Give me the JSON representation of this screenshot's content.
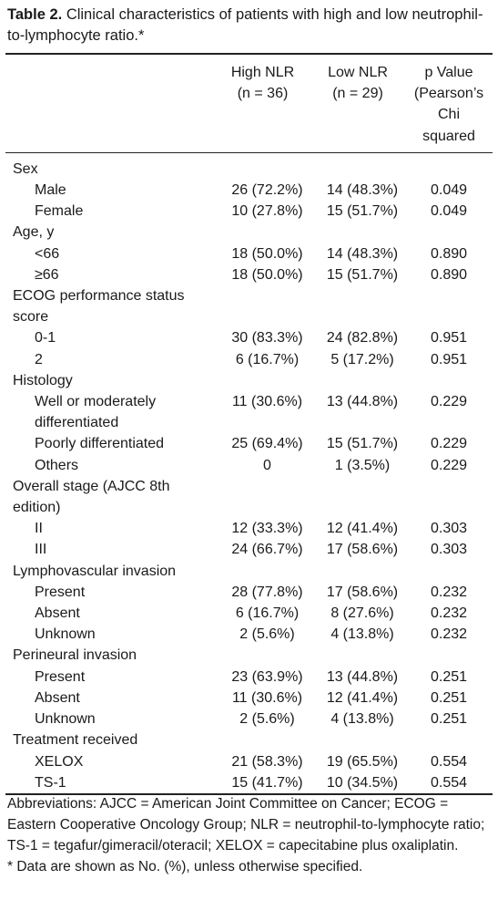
{
  "title": {
    "label": "Table 2.",
    "text": "Clinical characteristics of patients with high and low neutrophil-to-lymphocyte ratio.*"
  },
  "table": {
    "header": [
      "High NLR (n = 36)",
      "Low NLR (n = 29)",
      "p Value (Pearson’s Chi squared"
    ],
    "sections": [
      {
        "label": "Sex",
        "rows": [
          [
            "Male",
            "26 (72.2%)",
            "14 (48.3%)",
            "0.049"
          ],
          [
            "Female",
            "10 (27.8%)",
            "15 (51.7%)",
            "0.049"
          ]
        ]
      },
      {
        "label": "Age, y",
        "rows": [
          [
            "<66",
            "18 (50.0%)",
            "14 (48.3%)",
            "0.890"
          ],
          [
            "≥66",
            "18 (50.0%)",
            "15 (51.7%)",
            "0.890"
          ]
        ]
      },
      {
        "label": "ECOG performance status score",
        "rows": [
          [
            "0-1",
            "30 (83.3%)",
            "24 (82.8%)",
            "0.951"
          ],
          [
            "2",
            "6 (16.7%)",
            "5 (17.2%)",
            "0.951"
          ]
        ]
      },
      {
        "label": "Histology",
        "rows": [
          [
            "Well or moderately differentiated",
            "11 (30.6%)",
            "13 (44.8%)",
            "0.229"
          ],
          [
            "Poorly differentiated",
            "25 (69.4%)",
            "15 (51.7%)",
            "0.229"
          ],
          [
            "Others",
            "0",
            "1 (3.5%)",
            "0.229"
          ]
        ]
      },
      {
        "label": "Overall stage (AJCC 8th edition)",
        "rows": [
          [
            "II",
            "12 (33.3%)",
            "12 (41.4%)",
            "0.303"
          ],
          [
            "III",
            "24 (66.7%)",
            "17 (58.6%)",
            "0.303"
          ]
        ]
      },
      {
        "label": "Lymphovascular invasion",
        "rows": [
          [
            "Present",
            "28 (77.8%)",
            "17 (58.6%)",
            "0.232"
          ],
          [
            "Absent",
            "6 (16.7%)",
            "8 (27.6%)",
            "0.232"
          ],
          [
            "Unknown",
            "2 (5.6%)",
            "4 (13.8%)",
            "0.232"
          ]
        ]
      },
      {
        "label": "Perineural invasion",
        "rows": [
          [
            "Present",
            "23 (63.9%)",
            "13 (44.8%)",
            "0.251"
          ],
          [
            "Absent",
            "11 (30.6%)",
            "12 (41.4%)",
            "0.251"
          ],
          [
            "Unknown",
            "2 (5.6%)",
            "4 (13.8%)",
            "0.251"
          ]
        ]
      },
      {
        "label": "Treatment received",
        "rows": [
          [
            "XELOX",
            "21 (58.3%)",
            "19 (65.5%)",
            "0.554"
          ],
          [
            "TS-1",
            "15 (41.7%)",
            "10 (34.5%)",
            "0.554"
          ]
        ]
      }
    ]
  },
  "footnotes": [
    "Abbreviations: AJCC = American Joint Committee on Cancer; ECOG = Eastern Cooperative Oncology Group; NLR = neutrophil-to-lymphocyte ratio; TS-1 = tegafur/gimeracil/oteracil; XELOX = capecitabine plus oxaliplatin.",
    "* Data are shown as No. (%), unless otherwise specified."
  ]
}
